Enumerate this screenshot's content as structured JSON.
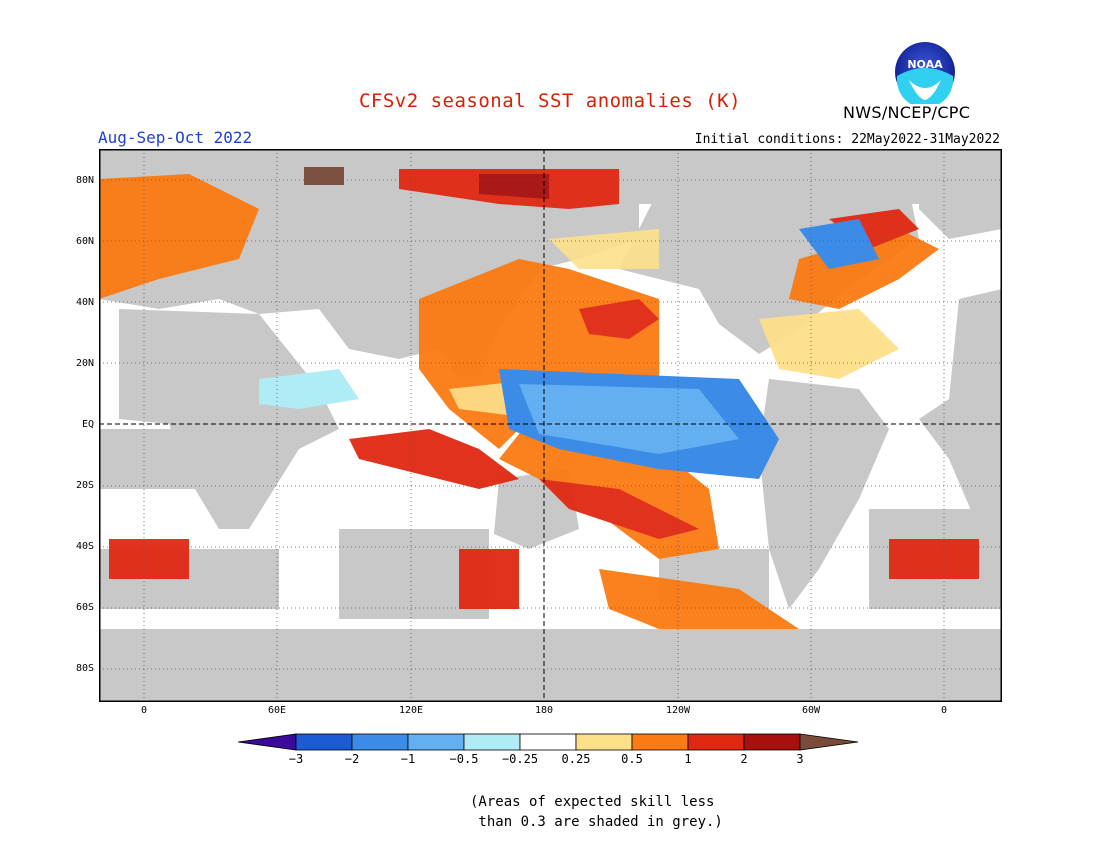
{
  "header": {
    "title": "CFSv2 seasonal SST anomalies (K)",
    "period": "Aug-Sep-Oct 2022",
    "initial_conditions": "Initial conditions: 22May2022-31May2022",
    "agency": "NWS/NCEP/CPC",
    "logo_text": "NOAA"
  },
  "colors": {
    "title": "#d81e05",
    "period": "#1f3fd1",
    "land_mask": "#c8c8c8"
  },
  "map": {
    "lat_labels": [
      "80N",
      "60N",
      "40N",
      "20N",
      "EQ",
      "20S",
      "40S",
      "60S",
      "80S"
    ],
    "lon_labels": [
      "0",
      "60E",
      "120E",
      "180",
      "120W",
      "60W",
      "0"
    ]
  },
  "colorbar": {
    "labels": [
      "−3",
      "−2",
      "−1",
      "−0.5",
      "−0.25",
      "0.25",
      "0.5",
      "1",
      "2",
      "3"
    ],
    "colors": [
      "#3a0a9a",
      "#1c5bd4",
      "#3c8be6",
      "#63aff2",
      "#b0ecf5",
      "#ffffff",
      "#fde08a",
      "#fb7a12",
      "#e02812",
      "#a8100e",
      "#7a4a3a"
    ]
  },
  "note": {
    "line1": "(Areas of expected skill less",
    "line2": " than 0.3 are shaded in grey.)"
  }
}
